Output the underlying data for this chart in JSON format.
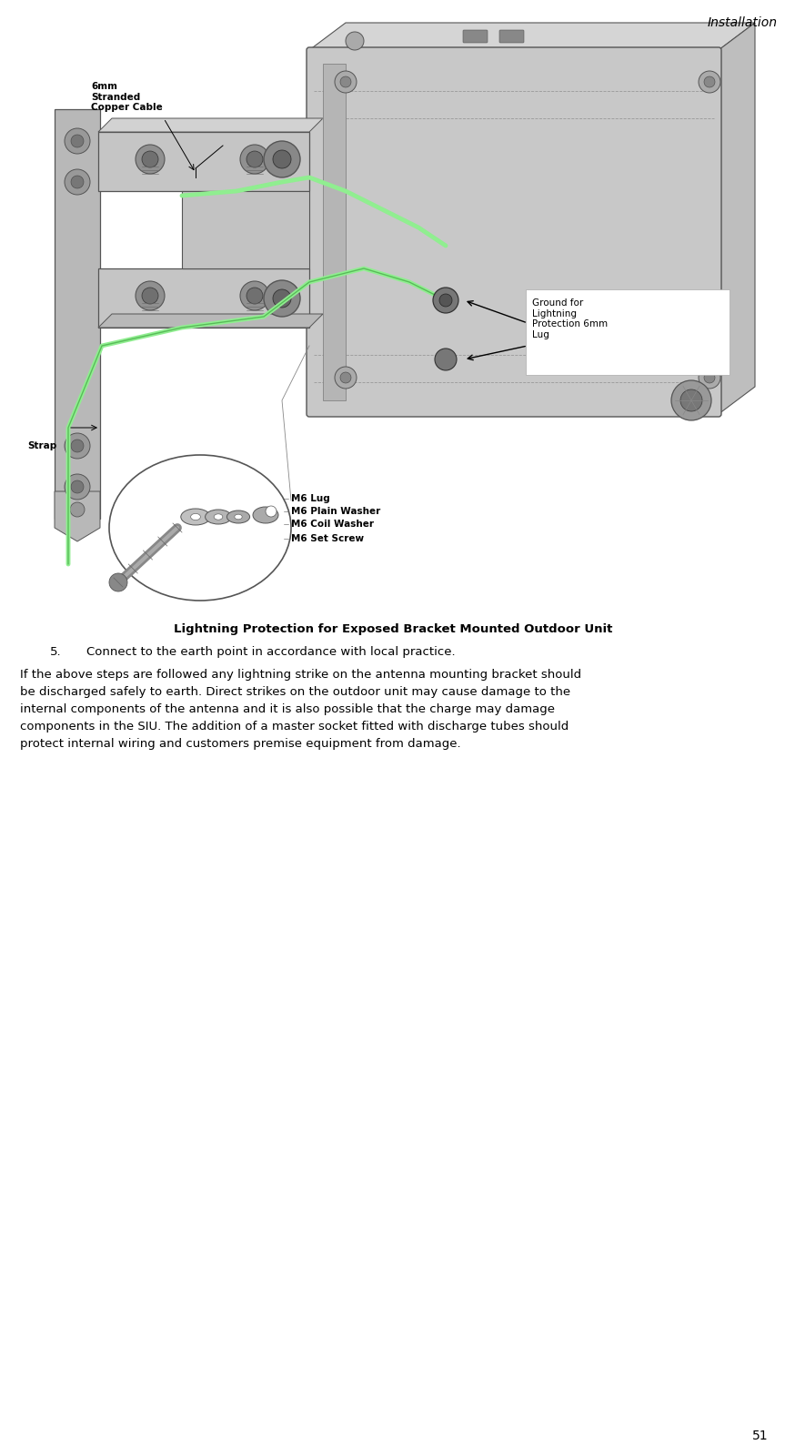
{
  "page_width": 8.63,
  "page_height": 15.99,
  "dpi": 100,
  "background_color": "#ffffff",
  "header_text": "Installation",
  "header_fontsize": 10,
  "header_color": "#000000",
  "footer_text": "51",
  "footer_fontsize": 10,
  "figure_title": "Lightning Protection for Exposed Bracket Mounted Outdoor Unit",
  "figure_title_fontsize": 9.5,
  "step_number": "5.",
  "step_text": "Connect to the earth point in accordance with local practice.",
  "step_fontsize": 9.5,
  "body_text_lines": [
    "If the above steps are followed any lightning strike on the antenna mounting bracket should",
    "be discharged safely to earth. Direct strikes on the outdoor unit may cause damage to the",
    "internal components of the antenna and it is also possible that the charge may damage",
    "components in the SIU. The addition of a master socket fitted with discharge tubes should",
    "protect internal wiring and customers premise equipment from damage."
  ],
  "body_fontsize": 9.5,
  "annotation_fontsize": 7.5,
  "ann_copper_cable": "6mm\nStranded\nCopper Cable",
  "ann_ground": "Ground for\nLightning\nProtection 6mm\nLug",
  "ann_strap": "Strap",
  "ann_m6_lug": "M6 Lug",
  "ann_m6_plain": "M6 Plain Washer",
  "ann_m6_coil": "M6 Coil Washer",
  "ann_m6_screw": "M6 Set Screw",
  "cable_color": "#90ee90",
  "odu_color": "#c8c8c8",
  "bracket_color": "#b8b8b8",
  "edge_color": "#555555",
  "white": "#ffffff"
}
